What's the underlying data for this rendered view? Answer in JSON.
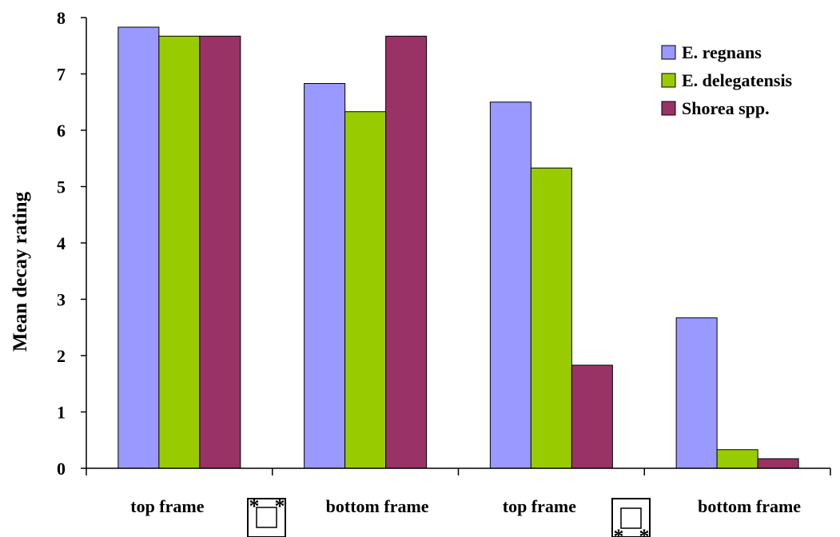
{
  "chart_data": {
    "type": "bar",
    "categories": [
      "top frame",
      "bottom frame",
      "top frame",
      "bottom frame"
    ],
    "series": [
      {
        "name": "E. regnans",
        "color": "#9999ff",
        "values": [
          7.83,
          6.83,
          6.5,
          2.67
        ]
      },
      {
        "name": "E. delegatensis",
        "color": "#99cc00",
        "values": [
          7.67,
          6.33,
          5.33,
          0.33
        ]
      },
      {
        "name": "Shorea spp.",
        "color": "#993366",
        "values": [
          7.67,
          7.67,
          1.83,
          0.17
        ]
      }
    ],
    "title": "",
    "xlabel": "",
    "ylabel": "Mean decay rating",
    "ylim": [
      0,
      8
    ],
    "yticks": [
      0,
      1,
      2,
      3,
      4,
      5,
      6,
      7,
      8
    ],
    "grid": false,
    "legend_position": "top-right",
    "annotations": [
      {
        "icon": "frame-joint-top-diagram-icon",
        "glyph": "*"
      },
      {
        "icon": "frame-joint-bottom-diagram-icon",
        "glyph": "*"
      }
    ]
  }
}
